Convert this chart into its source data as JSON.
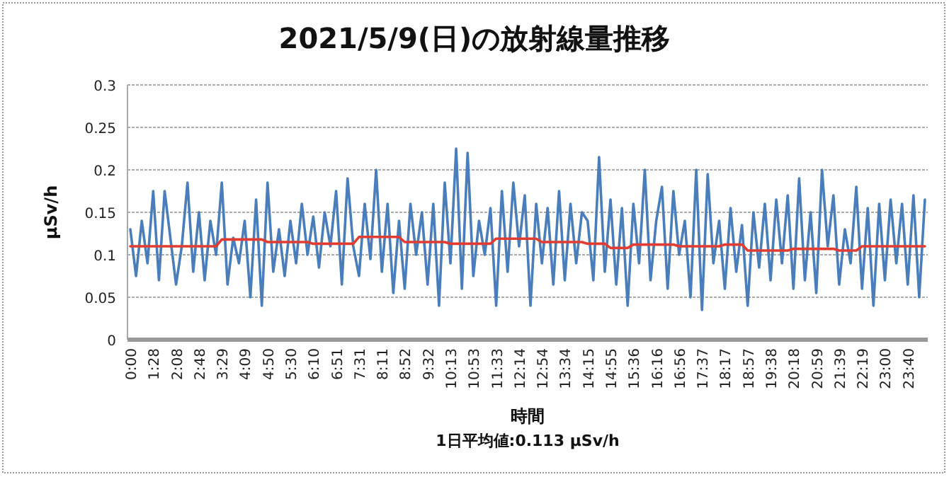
{
  "chart_data": {
    "type": "line",
    "title": "2021/5/9(日)の放射線量推移",
    "xlabel": "時間",
    "ylabel": "μSv/h",
    "annotations": [
      "1日平均値:0.113 μSv/h"
    ],
    "categories": [
      "0:00",
      null,
      null,
      null,
      "1:28",
      null,
      null,
      null,
      "2:08",
      null,
      null,
      null,
      "2:48",
      null,
      null,
      null,
      "3:29",
      null,
      null,
      null,
      "4:09",
      null,
      null,
      null,
      "4:50",
      null,
      null,
      null,
      "5:30",
      null,
      null,
      null,
      "6:10",
      null,
      null,
      null,
      "6:51",
      null,
      null,
      null,
      "7:31",
      null,
      null,
      null,
      "8:11",
      null,
      null,
      null,
      "8:52",
      null,
      null,
      null,
      "9:32",
      null,
      null,
      null,
      "10:13",
      null,
      null,
      null,
      "10:53",
      null,
      null,
      null,
      "11:33",
      null,
      null,
      null,
      "12:14",
      null,
      null,
      null,
      "12:54",
      null,
      null,
      null,
      "13:34",
      null,
      null,
      null,
      "14:15",
      null,
      null,
      null,
      "14:55",
      null,
      null,
      null,
      "15:36",
      null,
      null,
      null,
      "16:16",
      null,
      null,
      null,
      "16:56",
      null,
      null,
      null,
      "17:37",
      null,
      null,
      null,
      "18:17",
      null,
      null,
      null,
      "18:57",
      null,
      null,
      null,
      "19:38",
      null,
      null,
      null,
      "20:18",
      null,
      null,
      null,
      "20:59",
      null,
      null,
      null,
      "21:39",
      null,
      null,
      null,
      "22:19",
      null,
      null,
      null,
      "23:00",
      null,
      null,
      null,
      "23:40",
      null,
      null,
      null
    ],
    "series": [
      {
        "color": "#4a7ebb",
        "values": [
          0.13,
          0.075,
          0.14,
          0.09,
          0.175,
          0.07,
          0.175,
          0.12,
          0.065,
          0.11,
          0.185,
          0.08,
          0.15,
          0.07,
          0.14,
          0.1,
          0.185,
          0.065,
          0.12,
          0.09,
          0.14,
          0.05,
          0.165,
          0.04,
          0.185,
          0.08,
          0.13,
          0.075,
          0.14,
          0.09,
          0.16,
          0.1,
          0.145,
          0.085,
          0.15,
          0.11,
          0.175,
          0.065,
          0.19,
          0.11,
          0.075,
          0.16,
          0.095,
          0.2,
          0.08,
          0.16,
          0.055,
          0.14,
          0.06,
          0.16,
          0.1,
          0.15,
          0.065,
          0.16,
          0.04,
          0.185,
          0.09,
          0.225,
          0.06,
          0.22,
          0.075,
          0.14,
          0.1,
          0.155,
          0.04,
          0.175,
          0.08,
          0.185,
          0.11,
          0.17,
          0.04,
          0.16,
          0.09,
          0.155,
          0.065,
          0.175,
          0.07,
          0.16,
          0.09,
          0.15,
          0.14,
          0.07,
          0.215,
          0.08,
          0.165,
          0.065,
          0.155,
          0.04,
          0.16,
          0.09,
          0.2,
          0.07,
          0.14,
          0.18,
          0.06,
          0.175,
          0.1,
          0.14,
          0.05,
          0.2,
          0.035,
          0.195,
          0.09,
          0.14,
          0.06,
          0.155,
          0.08,
          0.135,
          0.04,
          0.15,
          0.085,
          0.16,
          0.07,
          0.165,
          0.09,
          0.17,
          0.06,
          0.19,
          0.07,
          0.15,
          0.055,
          0.2,
          0.11,
          0.17,
          0.065,
          0.13,
          0.09,
          0.18,
          0.06,
          0.155,
          0.04,
          0.16,
          0.07,
          0.165,
          0.09,
          0.16,
          0.065,
          0.17,
          0.05,
          0.165
        ]
      },
      {
        "color": "#e03c31",
        "values": [
          0.11,
          0.11,
          0.11,
          0.11,
          0.11,
          0.11,
          0.11,
          0.11,
          0.11,
          0.11,
          0.11,
          0.11,
          0.11,
          0.11,
          0.11,
          0.11,
          0.118,
          0.118,
          0.118,
          0.118,
          0.118,
          0.118,
          0.118,
          0.118,
          0.115,
          0.115,
          0.115,
          0.115,
          0.115,
          0.115,
          0.115,
          0.115,
          0.113,
          0.113,
          0.113,
          0.113,
          0.113,
          0.113,
          0.113,
          0.113,
          0.121,
          0.121,
          0.121,
          0.121,
          0.121,
          0.121,
          0.121,
          0.121,
          0.115,
          0.115,
          0.115,
          0.115,
          0.115,
          0.115,
          0.115,
          0.115,
          0.113,
          0.113,
          0.113,
          0.113,
          0.113,
          0.113,
          0.113,
          0.113,
          0.119,
          0.119,
          0.119,
          0.119,
          0.119,
          0.119,
          0.119,
          0.119,
          0.115,
          0.115,
          0.115,
          0.115,
          0.115,
          0.115,
          0.115,
          0.115,
          0.113,
          0.113,
          0.113,
          0.113,
          0.108,
          0.108,
          0.108,
          0.108,
          0.112,
          0.112,
          0.112,
          0.112,
          0.112,
          0.112,
          0.112,
          0.112,
          0.11,
          0.11,
          0.11,
          0.11,
          0.11,
          0.11,
          0.11,
          0.11,
          0.112,
          0.112,
          0.112,
          0.112,
          0.105,
          0.105,
          0.105,
          0.105,
          0.105,
          0.105,
          0.105,
          0.105,
          0.107,
          0.107,
          0.107,
          0.107,
          0.107,
          0.107,
          0.107,
          0.107,
          0.105,
          0.105,
          0.105,
          0.105,
          0.11,
          0.11,
          0.11,
          0.11,
          0.11,
          0.11,
          0.11,
          0.11,
          0.11,
          0.11,
          0.11,
          0.11
        ]
      }
    ],
    "ylim": [
      0,
      0.3
    ],
    "yticks": [
      0,
      0.05,
      0.1,
      0.15,
      0.2,
      0.25,
      0.3
    ],
    "grid": "y",
    "line_style": "solid"
  }
}
